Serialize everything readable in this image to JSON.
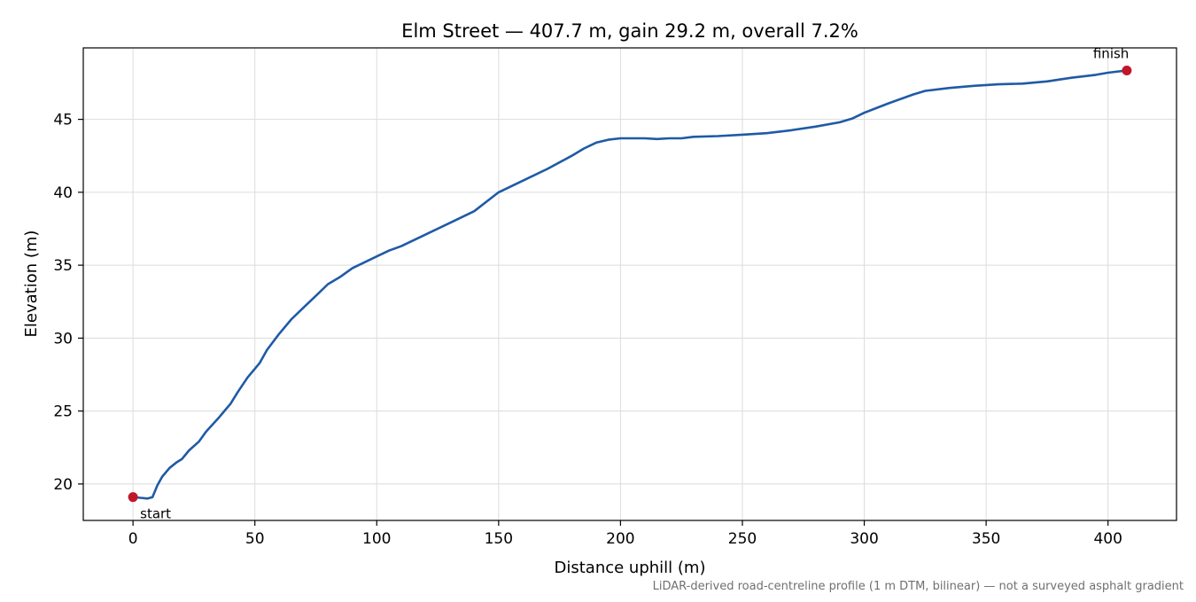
{
  "chart_data": {
    "type": "line",
    "title": "Elm Street — 407.7 m, gain 29.2 m, overall 7.2%",
    "xlabel": "Distance uphill (m)",
    "ylabel": "Elevation (m)",
    "footnote": "LiDAR-derived road-centreline profile (1 m DTM, bilinear) — not a surveyed asphalt gradient",
    "xlim": [
      -20.4,
      428.1
    ],
    "ylim": [
      17.5,
      49.9
    ],
    "x_ticks": [
      0,
      50,
      100,
      150,
      200,
      250,
      300,
      350,
      400
    ],
    "y_ticks": [
      20,
      25,
      30,
      35,
      40,
      45
    ],
    "grid": true,
    "series": [
      {
        "color": "#1f5aa6",
        "points": [
          [
            0,
            19.1
          ],
          [
            3,
            19.05
          ],
          [
            6,
            19.0
          ],
          [
            8,
            19.1
          ],
          [
            10,
            19.9
          ],
          [
            12,
            20.5
          ],
          [
            15,
            21.1
          ],
          [
            18,
            21.5
          ],
          [
            20,
            21.7
          ],
          [
            23,
            22.3
          ],
          [
            27,
            22.9
          ],
          [
            30,
            23.6
          ],
          [
            35,
            24.5
          ],
          [
            40,
            25.5
          ],
          [
            43,
            26.3
          ],
          [
            47,
            27.3
          ],
          [
            50,
            27.9
          ],
          [
            52,
            28.3
          ],
          [
            55,
            29.2
          ],
          [
            60,
            30.3
          ],
          [
            65,
            31.3
          ],
          [
            70,
            32.1
          ],
          [
            75,
            32.9
          ],
          [
            80,
            33.7
          ],
          [
            85,
            34.2
          ],
          [
            90,
            34.8
          ],
          [
            100,
            35.6
          ],
          [
            105,
            36.0
          ],
          [
            110,
            36.3
          ],
          [
            120,
            37.1
          ],
          [
            130,
            37.9
          ],
          [
            140,
            38.7
          ],
          [
            150,
            40.0
          ],
          [
            160,
            40.8
          ],
          [
            170,
            41.6
          ],
          [
            180,
            42.5
          ],
          [
            185,
            43.0
          ],
          [
            190,
            43.4
          ],
          [
            195,
            43.6
          ],
          [
            200,
            43.7
          ],
          [
            210,
            43.7
          ],
          [
            215,
            43.65
          ],
          [
            220,
            43.7
          ],
          [
            225,
            43.7
          ],
          [
            230,
            43.8
          ],
          [
            240,
            43.85
          ],
          [
            250,
            43.95
          ],
          [
            260,
            44.05
          ],
          [
            270,
            44.25
          ],
          [
            280,
            44.5
          ],
          [
            290,
            44.8
          ],
          [
            295,
            45.05
          ],
          [
            300,
            45.45
          ],
          [
            310,
            46.1
          ],
          [
            320,
            46.7
          ],
          [
            325,
            46.95
          ],
          [
            335,
            47.15
          ],
          [
            345,
            47.3
          ],
          [
            355,
            47.4
          ],
          [
            365,
            47.45
          ],
          [
            375,
            47.6
          ],
          [
            385,
            47.85
          ],
          [
            395,
            48.05
          ],
          [
            400,
            48.2
          ],
          [
            407.7,
            48.35
          ]
        ]
      }
    ],
    "markers": [
      {
        "label": "start",
        "x": 0,
        "y": 19.1,
        "color": "#c0182a"
      },
      {
        "label": "finish",
        "x": 407.7,
        "y": 48.35,
        "color": "#c0182a"
      }
    ]
  }
}
